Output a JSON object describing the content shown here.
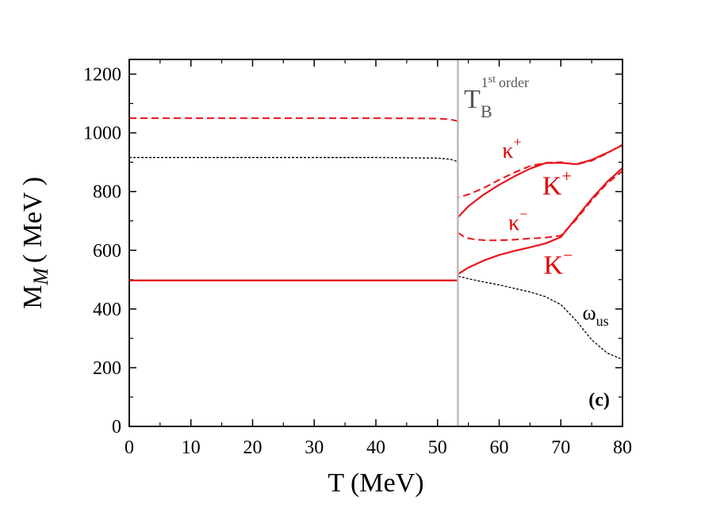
{
  "chart_data": {
    "type": "line",
    "panel_label": "(c)",
    "xlabel": "T (MeV)",
    "ylabel_main": "M",
    "ylabel_sub": "M",
    "ylabel_unit": "( MeV )",
    "xlim": [
      0,
      80
    ],
    "ylim": [
      0,
      1250
    ],
    "x_ticks": [
      0,
      10,
      20,
      30,
      40,
      50,
      60,
      70,
      80
    ],
    "y_ticks": [
      0,
      200,
      400,
      600,
      800,
      1000,
      1200
    ],
    "transition_T": 53.3,
    "transition_label": {
      "main": "T",
      "sub": "B",
      "sup": "1",
      "sup2": "st",
      "order": "order"
    },
    "colors": {
      "red": "#e8141c",
      "black": "#000000",
      "gray": "#bdbdbd"
    },
    "series": [
      {
        "label": {
          "main": "K",
          "sup": "+"
        },
        "color": "#e8141c",
        "dash": "solid",
        "x": [
          0,
          53.3,
          53.3,
          55,
          57.5,
          60,
          62.5,
          65,
          67.5,
          70,
          72.5,
          75,
          77.5,
          80
        ],
        "y": [
          497,
          497,
          712,
          750,
          790,
          823,
          852,
          878,
          897,
          898,
          893,
          908,
          932,
          958
        ]
      },
      {
        "label": {
          "main": "K",
          "sup": "−"
        },
        "color": "#e8141c",
        "dash": "solid",
        "x": [
          0,
          53.3,
          53.3,
          55,
          57.5,
          60,
          62.5,
          65,
          67.5,
          70,
          72.5,
          75,
          77.5,
          80
        ],
        "y": [
          497,
          497,
          518,
          541,
          565,
          584,
          598,
          610,
          623,
          645,
          710,
          775,
          833,
          880
        ]
      },
      {
        "label": {
          "main": "κ",
          "sup": "+"
        },
        "color": "#e8141c",
        "dash": "dashed",
        "x": [
          0,
          10,
          20,
          30,
          40,
          50,
          52,
          53.3,
          53.3,
          55,
          57.5,
          60,
          62.5,
          65,
          67.5,
          70,
          72.5,
          75,
          77.5,
          80
        ],
        "y": [
          1050,
          1050,
          1050,
          1050,
          1050,
          1049,
          1046,
          1040,
          780,
          790,
          812,
          840,
          865,
          887,
          898,
          900,
          892,
          905,
          930,
          960
        ]
      },
      {
        "label": {
          "main": "κ",
          "sup": "−"
        },
        "color": "#e8141c",
        "dash": "dashed",
        "x": [
          53.3,
          54.5,
          56,
          58,
          60,
          62.5,
          65,
          67.5,
          70,
          72.5,
          75,
          77.5,
          80
        ],
        "y": [
          660,
          643,
          637,
          634,
          634,
          636,
          640,
          643,
          650,
          705,
          770,
          828,
          870
        ]
      },
      {
        "label": {
          "main": "ω",
          "sub": "us"
        },
        "color": "#000000",
        "dash": "dotted",
        "x": [
          0,
          10,
          20,
          30,
          40,
          50,
          52,
          53.3,
          53.3,
          55,
          57.5,
          60,
          62.5,
          65,
          67.5,
          70,
          72.5,
          75,
          77.5,
          80
        ],
        "y": [
          916,
          916,
          916,
          916,
          916,
          914,
          910,
          902,
          512,
          503,
          492,
          482,
          470,
          458,
          442,
          415,
          360,
          295,
          250,
          228
        ]
      }
    ]
  }
}
